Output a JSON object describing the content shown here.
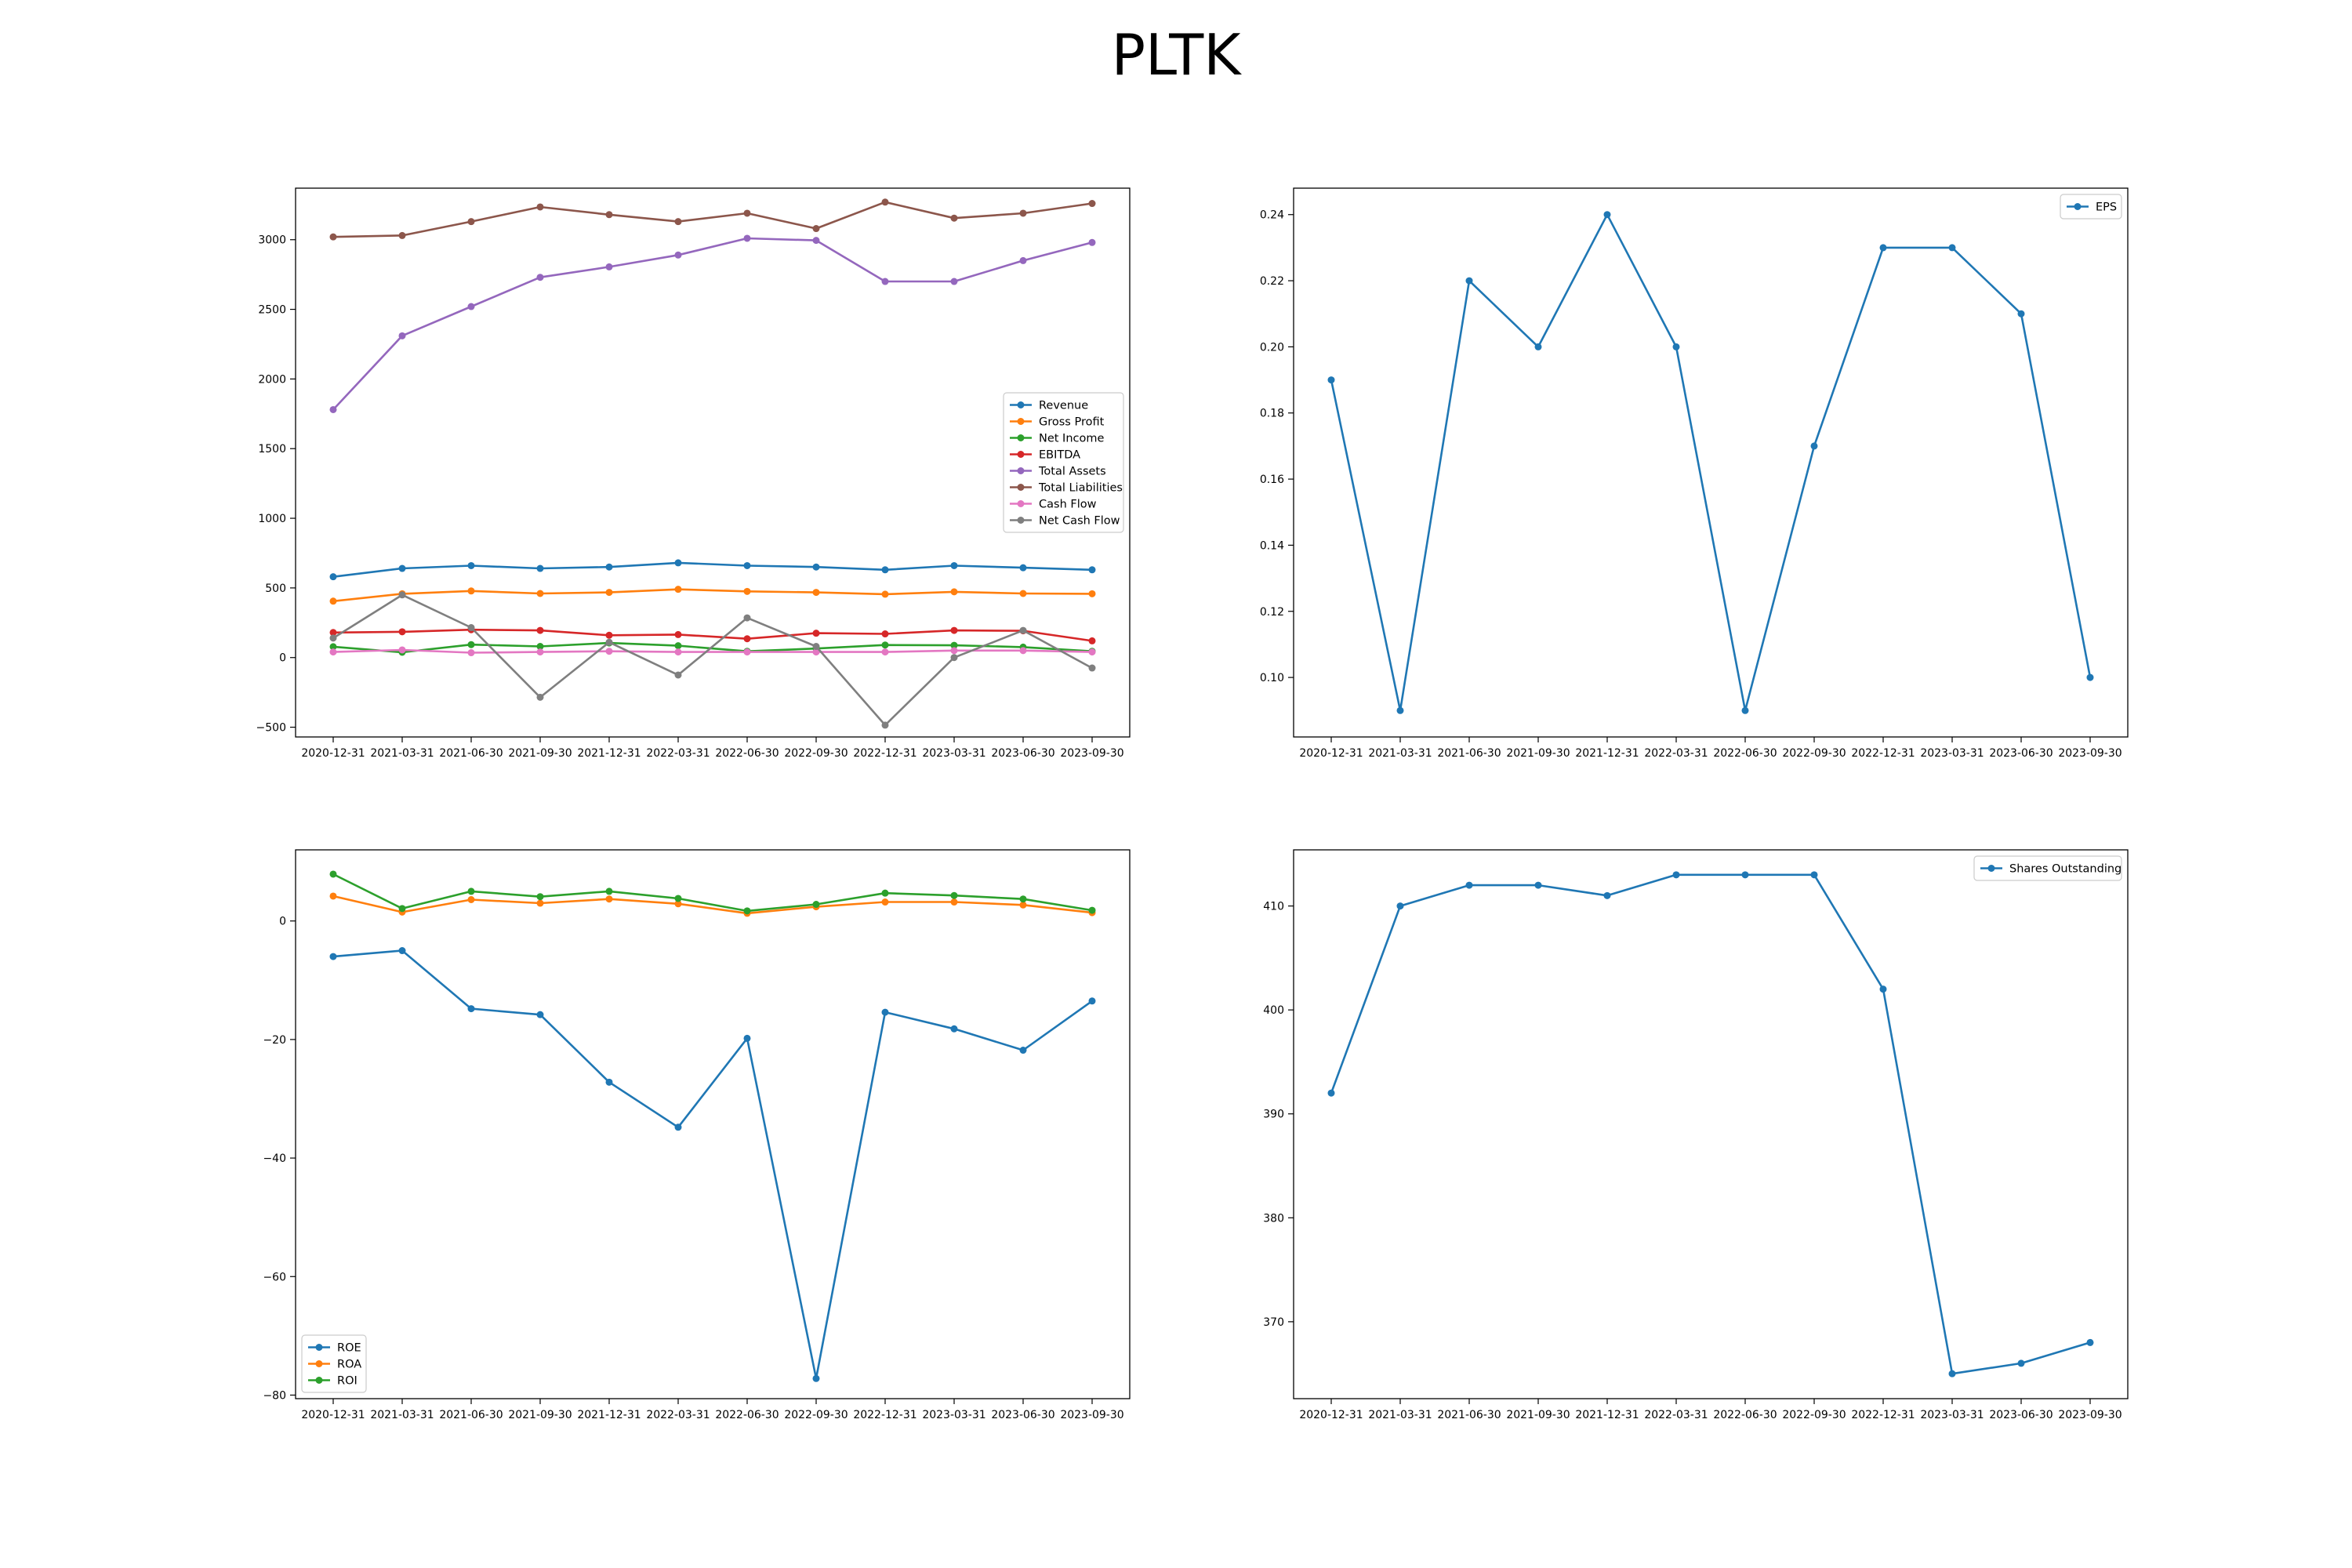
{
  "title": "PLTK",
  "dates": [
    "2020-12-31",
    "2021-03-31",
    "2021-06-30",
    "2021-09-30",
    "2021-12-31",
    "2022-03-31",
    "2022-06-30",
    "2022-09-30",
    "2022-12-31",
    "2023-03-31",
    "2023-06-30",
    "2023-09-30"
  ],
  "chart_data": [
    {
      "id": "financials",
      "type": "line",
      "x": [
        "2020-12-31",
        "2021-03-31",
        "2021-06-30",
        "2021-09-30",
        "2021-12-31",
        "2022-03-31",
        "2022-06-30",
        "2022-09-30",
        "2022-12-31",
        "2023-03-31",
        "2023-06-30",
        "2023-09-30"
      ],
      "ylim": [
        -570,
        3370
      ],
      "yticks": [
        -500,
        0,
        500,
        1000,
        1500,
        2000,
        2500,
        3000
      ],
      "ytick_labels": [
        "−500",
        "0",
        "500",
        "1000",
        "1500",
        "2000",
        "2500",
        "3000"
      ],
      "legend": "center-right",
      "grid": false,
      "series": [
        {
          "name": "Revenue",
          "color": "#1f77b4",
          "values": [
            580,
            640,
            660,
            640,
            650,
            680,
            660,
            650,
            630,
            660,
            645,
            630
          ]
        },
        {
          "name": "Gross Profit",
          "color": "#ff7f0e",
          "values": [
            405,
            458,
            478,
            460,
            468,
            490,
            475,
            468,
            455,
            472,
            460,
            458
          ]
        },
        {
          "name": "Net Income",
          "color": "#2ca02c",
          "values": [
            78,
            38,
            93,
            80,
            105,
            85,
            45,
            65,
            90,
            88,
            75,
            45
          ]
        },
        {
          "name": "EBITDA",
          "color": "#d62728",
          "values": [
            180,
            185,
            200,
            195,
            160,
            165,
            135,
            175,
            170,
            195,
            192,
            120
          ]
        },
        {
          "name": "Total Assets",
          "color": "#9467bd",
          "values": [
            1780,
            2310,
            2520,
            2730,
            2805,
            2890,
            3010,
            2995,
            2700,
            2700,
            2850,
            2980
          ]
        },
        {
          "name": "Total Liabilities",
          "color": "#8c564b",
          "values": [
            3020,
            3030,
            3130,
            3235,
            3180,
            3130,
            3190,
            3080,
            3270,
            3155,
            3190,
            3260
          ]
        },
        {
          "name": "Cash Flow",
          "color": "#e377c2",
          "values": [
            40,
            55,
            35,
            40,
            45,
            40,
            40,
            40,
            40,
            50,
            50,
            40
          ]
        },
        {
          "name": "Net Cash Flow",
          "color": "#7f7f7f",
          "values": [
            140,
            450,
            215,
            -285,
            110,
            -125,
            285,
            80,
            -485,
            0,
            195,
            -75
          ]
        }
      ]
    },
    {
      "id": "eps",
      "type": "line",
      "x": [
        "2020-12-31",
        "2021-03-31",
        "2021-06-30",
        "2021-09-30",
        "2021-12-31",
        "2022-03-31",
        "2022-06-30",
        "2022-09-30",
        "2022-12-31",
        "2023-03-31",
        "2023-06-30",
        "2023-09-30"
      ],
      "ylim": [
        0.082,
        0.248
      ],
      "yticks": [
        0.1,
        0.12,
        0.14,
        0.16,
        0.18,
        0.2,
        0.22,
        0.24
      ],
      "ytick_labels": [
        "0.10",
        "0.12",
        "0.14",
        "0.16",
        "0.18",
        "0.20",
        "0.22",
        "0.24"
      ],
      "legend": "top-right",
      "grid": false,
      "series": [
        {
          "name": "EPS",
          "color": "#1f77b4",
          "values": [
            0.19,
            0.09,
            0.22,
            0.2,
            0.24,
            0.2,
            0.09,
            0.17,
            0.23,
            0.23,
            0.21,
            0.1
          ]
        }
      ]
    },
    {
      "id": "returns",
      "type": "line",
      "x": [
        "2020-12-31",
        "2021-03-31",
        "2021-06-30",
        "2021-09-30",
        "2021-12-31",
        "2022-03-31",
        "2022-06-30",
        "2022-09-30",
        "2022-12-31",
        "2023-03-31",
        "2023-06-30",
        "2023-09-30"
      ],
      "ylim": [
        -80.6,
        12
      ],
      "yticks": [
        -80,
        -60,
        -40,
        -20,
        0
      ],
      "ytick_labels": [
        "−80",
        "−60",
        "−40",
        "−20",
        "0"
      ],
      "legend": "bottom-left",
      "grid": false,
      "series": [
        {
          "name": "ROE",
          "color": "#1f77b4",
          "values": [
            -6,
            -5,
            -14.8,
            -15.8,
            -27.2,
            -34.8,
            -19.8,
            -77.2,
            -15.4,
            -18.2,
            -21.8,
            -13.5
          ]
        },
        {
          "name": "ROA",
          "color": "#ff7f0e",
          "values": [
            4.2,
            1.5,
            3.6,
            3.0,
            3.7,
            2.9,
            1.3,
            2.4,
            3.2,
            3.2,
            2.7,
            1.4
          ]
        },
        {
          "name": "ROI",
          "color": "#2ca02c",
          "values": [
            7.9,
            2.1,
            5.0,
            4.1,
            5.0,
            3.8,
            1.7,
            2.8,
            4.7,
            4.3,
            3.7,
            1.8
          ]
        }
      ]
    },
    {
      "id": "shares",
      "type": "line",
      "x": [
        "2020-12-31",
        "2021-03-31",
        "2021-06-30",
        "2021-09-30",
        "2021-12-31",
        "2022-03-31",
        "2022-06-30",
        "2022-09-30",
        "2022-12-31",
        "2023-03-31",
        "2023-06-30",
        "2023-09-30"
      ],
      "ylim": [
        362.6,
        415.4
      ],
      "yticks": [
        370,
        380,
        390,
        400,
        410
      ],
      "ytick_labels": [
        "370",
        "380",
        "390",
        "400",
        "410"
      ],
      "legend": "top-right",
      "grid": false,
      "series": [
        {
          "name": "Shares Outstanding",
          "color": "#1f77b4",
          "values": [
            392,
            410,
            412,
            412,
            411,
            413,
            413,
            413,
            402,
            365,
            366,
            368
          ]
        }
      ]
    }
  ]
}
